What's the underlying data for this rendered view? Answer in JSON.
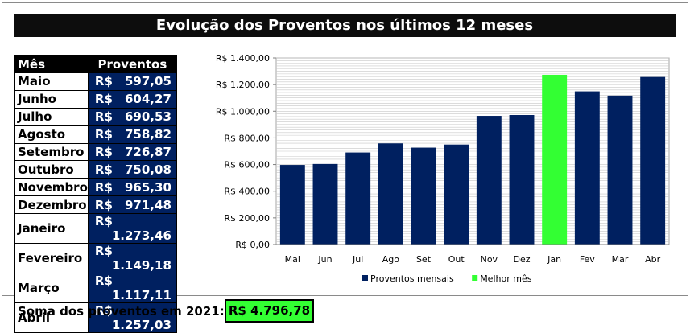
{
  "title": "Evolução dos Proventos nos últimos 12 meses",
  "table": {
    "header_month": "Mês",
    "header_value": "Proventos",
    "currency": "R$",
    "rows": [
      {
        "month": "Maio",
        "value": "597,05"
      },
      {
        "month": "Junho",
        "value": "604,27"
      },
      {
        "month": "Julho",
        "value": "690,53"
      },
      {
        "month": "Agosto",
        "value": "758,82"
      },
      {
        "month": "Setembro",
        "value": "726,87"
      },
      {
        "month": "Outubro",
        "value": "750,08"
      },
      {
        "month": "Novembro",
        "value": "965,30"
      },
      {
        "month": "Dezembro",
        "value": "971,48"
      },
      {
        "month": "Janeiro",
        "value": "1.273,46"
      },
      {
        "month": "Fevereiro",
        "value": "1.149,18"
      },
      {
        "month": "Março",
        "value": "1.117,11"
      },
      {
        "month": "Abril",
        "value": "1.257,03"
      }
    ]
  },
  "summary": {
    "label": "Soma dos proventos em 2021:",
    "value": "R$  4.796,78"
  },
  "chart_data": {
    "type": "bar",
    "categories": [
      "Mai",
      "Jun",
      "Jul",
      "Ago",
      "Set",
      "Out",
      "Nov",
      "Dez",
      "Jan",
      "Fev",
      "Mar",
      "Abr"
    ],
    "values": [
      597.05,
      604.27,
      690.53,
      758.82,
      726.87,
      750.08,
      965.3,
      971.48,
      1273.46,
      1149.18,
      1117.11,
      1257.03
    ],
    "highlight_category": "Jan",
    "ylim": [
      0,
      1400
    ],
    "y_ticks": [
      0,
      200,
      400,
      600,
      800,
      1000,
      1200,
      1400
    ],
    "y_tick_labels": [
      "R$ 0,00",
      "R$ 200,00",
      "R$ 400,00",
      "R$ 600,00",
      "R$ 800,00",
      "R$ 1.000,00",
      "R$ 1.200,00",
      "R$ 1.400,00"
    ],
    "grid": true,
    "legend_position": "bottom",
    "legend": [
      {
        "name": "Proventos mensais",
        "color": "#002060"
      },
      {
        "name": "Melhor mês",
        "color": "#33ff33"
      }
    ],
    "colors": {
      "normal": "#002060",
      "best": "#33ff33"
    }
  }
}
